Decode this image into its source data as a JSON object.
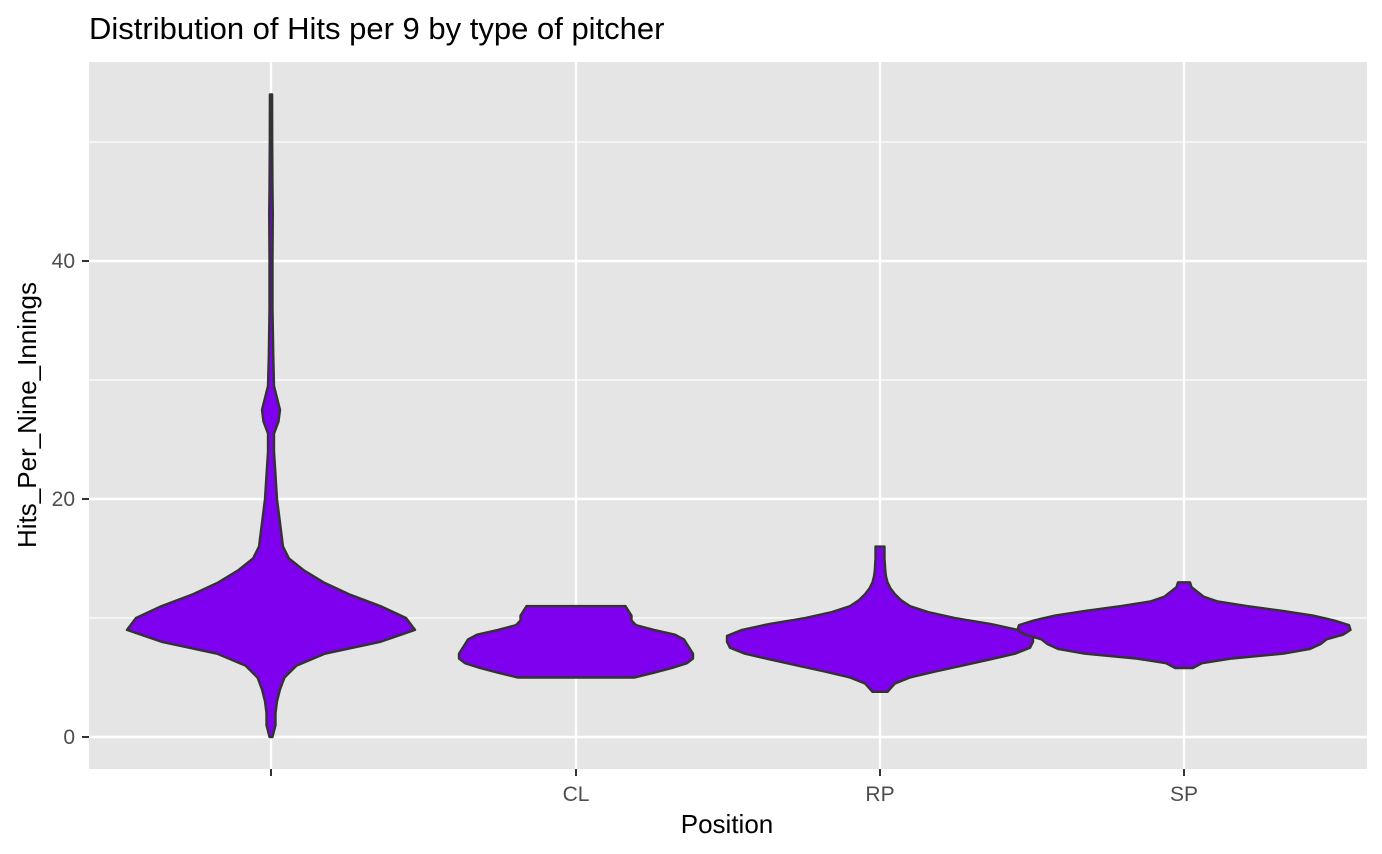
{
  "chart_data": {
    "type": "violin",
    "title": "Distribution of Hits per 9 by type of pitcher",
    "xlabel": "Position",
    "ylabel": "Hits_Per_Nine_Innings",
    "categories": [
      "",
      "CL",
      "RP",
      "SP"
    ],
    "ylim": [
      -2.6,
      56.8
    ],
    "y_ticks": [
      0,
      20,
      40
    ],
    "grid": true,
    "fill_color": "#7F00EE",
    "outline_color": "#333333",
    "panel_color": "#E5E5E5",
    "violins": [
      {
        "category": "",
        "profile": [
          [
            0.0,
            0.01
          ],
          [
            1.0,
            0.03
          ],
          [
            2.0,
            0.03
          ],
          [
            3.0,
            0.04
          ],
          [
            4.0,
            0.06
          ],
          [
            5.0,
            0.09
          ],
          [
            6.0,
            0.17
          ],
          [
            7.0,
            0.36
          ],
          [
            8.0,
            0.73
          ],
          [
            9.0,
            0.96
          ],
          [
            10.0,
            0.9
          ],
          [
            11.0,
            0.73
          ],
          [
            12.0,
            0.52
          ],
          [
            13.0,
            0.35
          ],
          [
            14.0,
            0.22
          ],
          [
            15.0,
            0.12
          ],
          [
            16.0,
            0.08
          ],
          [
            17.0,
            0.07
          ],
          [
            18.0,
            0.06
          ],
          [
            19.0,
            0.05
          ],
          [
            20.0,
            0.04
          ],
          [
            22.0,
            0.03
          ],
          [
            24.0,
            0.02
          ],
          [
            25.5,
            0.02
          ],
          [
            26.5,
            0.05
          ],
          [
            27.5,
            0.06
          ],
          [
            28.5,
            0.04
          ],
          [
            29.5,
            0.02
          ],
          [
            32.0,
            0.015
          ],
          [
            36.0,
            0.01
          ],
          [
            40.0,
            0.01
          ],
          [
            44.0,
            0.012
          ],
          [
            46.0,
            0.01
          ],
          [
            50.0,
            0.008
          ],
          [
            54.0,
            0.007
          ]
        ]
      },
      {
        "category": "CL",
        "profile": [
          [
            5.0,
            0.39
          ],
          [
            5.4,
            0.52
          ],
          [
            5.8,
            0.64
          ],
          [
            6.2,
            0.74
          ],
          [
            6.6,
            0.78
          ],
          [
            7.0,
            0.78
          ],
          [
            7.4,
            0.76
          ],
          [
            7.8,
            0.74
          ],
          [
            8.2,
            0.72
          ],
          [
            8.6,
            0.66
          ],
          [
            9.0,
            0.52
          ],
          [
            9.4,
            0.4
          ],
          [
            9.8,
            0.37
          ],
          [
            10.2,
            0.37
          ],
          [
            10.6,
            0.35
          ],
          [
            11.0,
            0.33
          ]
        ]
      },
      {
        "category": "RP",
        "profile": [
          [
            3.8,
            0.05
          ],
          [
            4.5,
            0.1
          ],
          [
            5.0,
            0.2
          ],
          [
            5.5,
            0.37
          ],
          [
            6.0,
            0.55
          ],
          [
            6.5,
            0.73
          ],
          [
            7.0,
            0.9
          ],
          [
            7.5,
            1.0
          ],
          [
            8.0,
            1.02
          ],
          [
            8.5,
            1.02
          ],
          [
            9.0,
            0.92
          ],
          [
            9.5,
            0.74
          ],
          [
            10.0,
            0.5
          ],
          [
            10.5,
            0.32
          ],
          [
            11.0,
            0.2
          ],
          [
            11.5,
            0.14
          ],
          [
            12.0,
            0.1
          ],
          [
            12.5,
            0.07
          ],
          [
            13.0,
            0.05
          ],
          [
            13.5,
            0.04
          ],
          [
            14.0,
            0.035
          ],
          [
            15.0,
            0.03
          ],
          [
            16.0,
            0.03
          ]
        ]
      },
      {
        "category": "SP",
        "profile": [
          [
            5.8,
            0.06
          ],
          [
            6.2,
            0.12
          ],
          [
            6.6,
            0.32
          ],
          [
            7.0,
            0.66
          ],
          [
            7.4,
            0.84
          ],
          [
            7.8,
            0.91
          ],
          [
            8.2,
            0.95
          ],
          [
            8.6,
            1.06
          ],
          [
            9.0,
            1.11
          ],
          [
            9.4,
            1.1
          ],
          [
            9.8,
            1.0
          ],
          [
            10.2,
            0.86
          ],
          [
            10.6,
            0.66
          ],
          [
            11.0,
            0.42
          ],
          [
            11.4,
            0.22
          ],
          [
            11.8,
            0.13
          ],
          [
            12.2,
            0.09
          ],
          [
            12.6,
            0.05
          ],
          [
            13.0,
            0.04
          ]
        ]
      }
    ]
  }
}
